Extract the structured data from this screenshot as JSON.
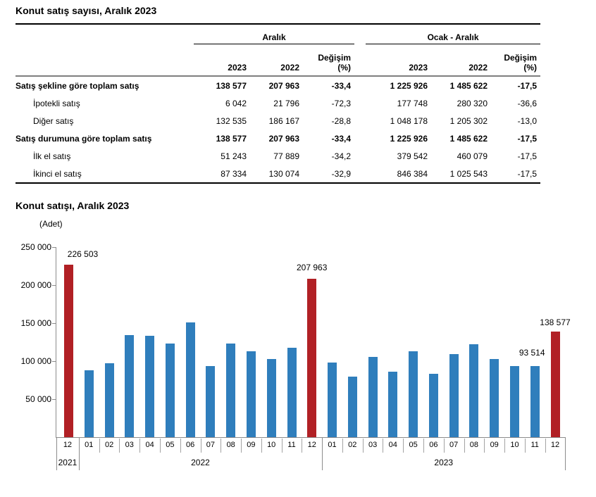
{
  "table": {
    "title": "Konut satış sayısı, Aralık 2023",
    "groups": [
      {
        "label": "Aralık"
      },
      {
        "label": "Ocak - Aralık"
      }
    ],
    "headers": {
      "year_curr": "2023",
      "year_prev": "2022",
      "change_line1": "Değişim",
      "change_line2": "(%)"
    },
    "rows": [
      {
        "label": "Satış şekline göre toplam satış",
        "c": [
          "138 577",
          "207 963",
          "-33,4",
          "1 225 926",
          "1 485 622",
          "-17,5"
        ]
      },
      {
        "label": "İpotekli satış",
        "c": [
          "6 042",
          "21 796",
          "-72,3",
          "177 748",
          "280 320",
          "-36,6"
        ]
      },
      {
        "label": "Diğer satış",
        "c": [
          "132 535",
          "186 167",
          "-28,8",
          "1 048 178",
          "1 205 302",
          "-13,0"
        ]
      },
      {
        "label": "Satış durumuna göre toplam satış",
        "c": [
          "138 577",
          "207 963",
          "-33,4",
          "1 225 926",
          "1 485 622",
          "-17,5"
        ]
      },
      {
        "label": "İlk el satış",
        "c": [
          "51 243",
          "77 889",
          "-34,2",
          "379 542",
          "460 079",
          "-17,5"
        ]
      },
      {
        "label": "İkinci el satış",
        "c": [
          "87 334",
          "130 074",
          "-32,9",
          "846 384",
          "1 025 543",
          "-17,5"
        ]
      }
    ]
  },
  "chart": {
    "title": "Konut satışı, Aralık 2023",
    "unit_label": "(Adet)"
  },
  "chart_data": {
    "type": "bar",
    "title": "Konut satışı, Aralık 2023",
    "ylabel": "(Adet)",
    "ylim": [
      0,
      250000
    ],
    "grid": false,
    "legend": "none",
    "periods": [
      "2021-12",
      "2022-01",
      "2022-02",
      "2022-03",
      "2022-04",
      "2022-05",
      "2022-06",
      "2022-07",
      "2022-08",
      "2022-09",
      "2022-10",
      "2022-11",
      "2022-12",
      "2023-01",
      "2023-02",
      "2023-03",
      "2023-04",
      "2023-05",
      "2023-06",
      "2023-07",
      "2023-08",
      "2023-09",
      "2023-10",
      "2023-11",
      "2023-12"
    ],
    "month_labels": [
      "12",
      "01",
      "02",
      "03",
      "04",
      "05",
      "06",
      "07",
      "08",
      "09",
      "10",
      "11",
      "12",
      "01",
      "02",
      "03",
      "04",
      "05",
      "06",
      "07",
      "08",
      "09",
      "10",
      "11",
      "12"
    ],
    "year_groups": [
      {
        "label": "2021",
        "from": 0,
        "to": 1
      },
      {
        "label": "2022",
        "from": 1,
        "to": 13
      },
      {
        "label": "2023",
        "from": 13,
        "to": 25
      }
    ],
    "values": [
      226503,
      88306,
      97587,
      134170,
      133058,
      122768,
      150509,
      93902,
      123491,
      113402,
      102660,
      117806,
      207963,
      97708,
      80031,
      105476,
      85652,
      113276,
      83636,
      109548,
      122091,
      102656,
      93761,
      93514,
      138577
    ],
    "highlight_indices": [
      0,
      12,
      24
    ],
    "colors": {
      "bar_default": "#2f7ebc",
      "bar_highlight": "#b12025"
    },
    "y_ticks": [
      {
        "label": "250 000",
        "value": 250000
      },
      {
        "label": "200 000",
        "value": 200000
      },
      {
        "label": "150 000",
        "value": 150000
      },
      {
        "label": "100 000",
        "value": 100000
      },
      {
        "label": "50 000",
        "value": 50000
      }
    ],
    "annotations": [
      {
        "index": 0,
        "text": "226 503",
        "dx": 20,
        "gap": 8
      },
      {
        "index": 12,
        "text": "207 963",
        "dx": 0,
        "gap": 9
      },
      {
        "index": 23,
        "text": "93 514",
        "dx": -4,
        "gap": 12
      },
      {
        "index": 24,
        "text": "138 577",
        "dx": 0,
        "gap": 6
      }
    ]
  }
}
